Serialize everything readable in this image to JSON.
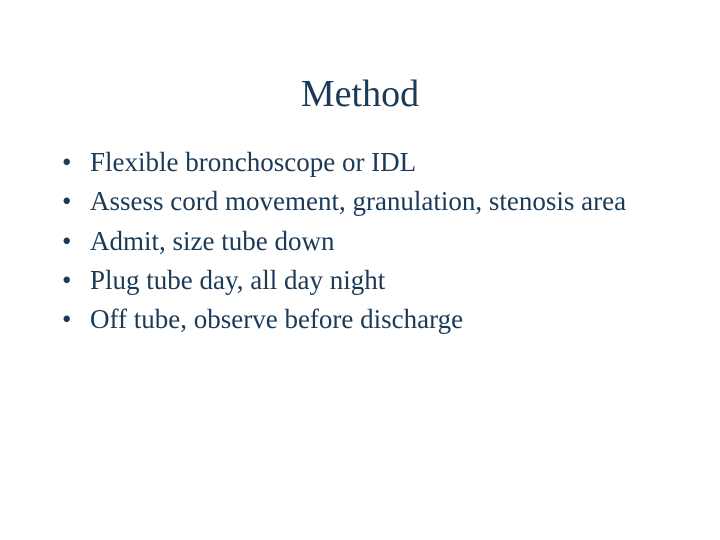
{
  "slide": {
    "title": "Method",
    "title_color": "#1b3a57",
    "title_fontsize": 38,
    "text_color": "#1b3a57",
    "bullet_fontsize": 27,
    "background_color": "#ffffff",
    "bullets": [
      "Flexible bronchoscope or IDL",
      "Assess cord movement, granulation, stenosis area",
      "Admit, size tube down",
      "Plug tube day, all day night",
      "Off tube, observe before discharge"
    ]
  }
}
